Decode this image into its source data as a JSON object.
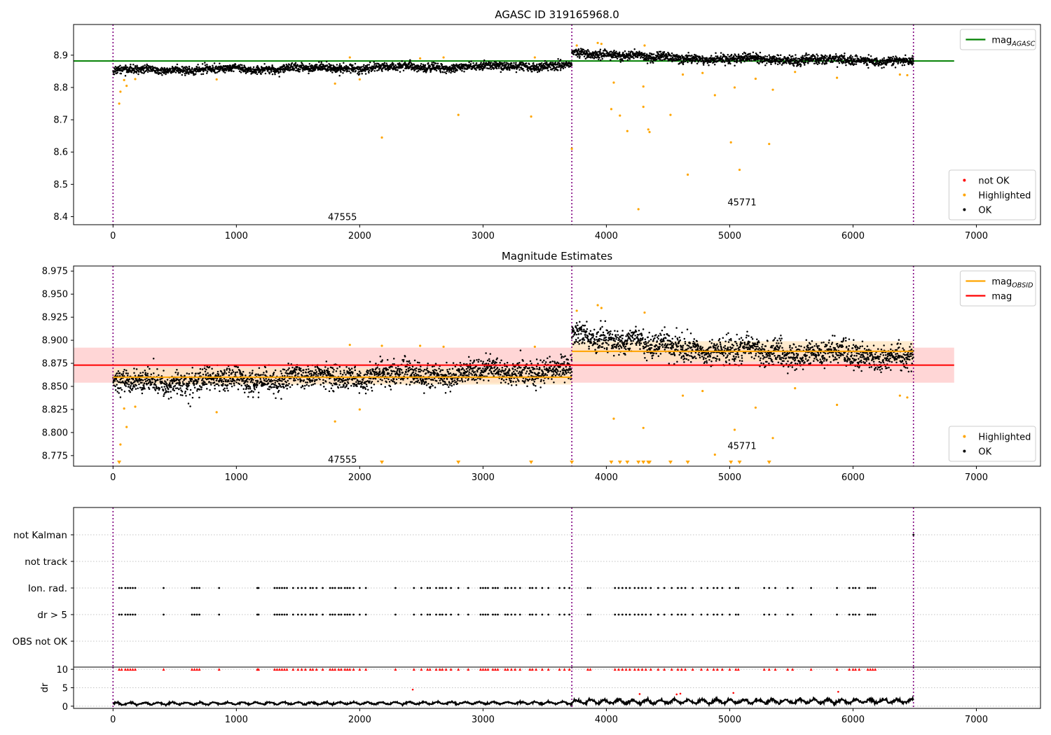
{
  "figure": {
    "title_top": "AGASC ID 319165968.0",
    "title_mid": "Magnitude Estimates",
    "obsid_labels": [
      "47555",
      "45771"
    ]
  },
  "chart_data": [
    {
      "type": "scatter",
      "title": "AGASC ID 319165968.0",
      "xlim": [
        -320,
        7520
      ],
      "ylim": [
        8.375,
        8.995
      ],
      "xticks": [
        0,
        1000,
        2000,
        3000,
        4000,
        5000,
        6000,
        7000
      ],
      "yticks": [
        8.4,
        8.5,
        8.6,
        8.7,
        8.8,
        8.9
      ],
      "grid": false,
      "vlines": [
        0,
        3720,
        6490
      ],
      "annotations": [
        {
          "text": "47555",
          "x": 1860,
          "y": 8.4
        },
        {
          "text": "45771",
          "x": 5100,
          "y": 8.445
        }
      ],
      "hlines": [
        {
          "name": "mag_AGASC",
          "y": 8.882,
          "xmin": -320,
          "xmax": 6820,
          "color": "#008000"
        }
      ],
      "series": [
        {
          "name": "OK",
          "color": "#000000",
          "segments": [
            {
              "x_range": [
                0,
                3720
              ],
              "level_start": 8.853,
              "level_end": 8.868,
              "spread": 0.02
            },
            {
              "x_range": [
                3720,
                4300
              ],
              "level_start": 8.905,
              "level_end": 8.9,
              "spread": 0.02
            },
            {
              "x_range": [
                4300,
                6490
              ],
              "level_start": 8.892,
              "level_end": 8.882,
              "spread": 0.022
            }
          ]
        },
        {
          "name": "Highlighted",
          "color": "#ffa500",
          "points": [
            [
              50,
              8.75
            ],
            [
              60,
              8.787
            ],
            [
              90,
              8.823
            ],
            [
              110,
              8.805
            ],
            [
              180,
              8.826
            ],
            [
              840,
              8.825
            ],
            [
              1800,
              8.812
            ],
            [
              1920,
              8.893
            ],
            [
              2000,
              8.825
            ],
            [
              2180,
              8.645
            ],
            [
              2490,
              8.89
            ],
            [
              2680,
              8.893
            ],
            [
              2800,
              8.715
            ],
            [
              3390,
              8.71
            ],
            [
              3420,
              8.893
            ],
            [
              3720,
              8.61
            ],
            [
              3760,
              8.93
            ],
            [
              3930,
              8.938
            ],
            [
              3960,
              8.935
            ],
            [
              4040,
              8.733
            ],
            [
              4060,
              8.815
            ],
            [
              4110,
              8.713
            ],
            [
              4170,
              8.665
            ],
            [
              4260,
              8.423
            ],
            [
              4300,
              8.803
            ],
            [
              4300,
              8.74
            ],
            [
              4310,
              8.93
            ],
            [
              4340,
              8.67
            ],
            [
              4350,
              8.662
            ],
            [
              4520,
              8.715
            ],
            [
              4620,
              8.84
            ],
            [
              4660,
              8.53
            ],
            [
              4780,
              8.845
            ],
            [
              4880,
              8.776
            ],
            [
              5010,
              8.63
            ],
            [
              5040,
              8.8
            ],
            [
              5080,
              8.545
            ],
            [
              5210,
              8.827
            ],
            [
              5320,
              8.625
            ],
            [
              5350,
              8.793
            ],
            [
              5530,
              8.848
            ],
            [
              5870,
              8.83
            ],
            [
              6380,
              8.84
            ],
            [
              6440,
              8.838
            ]
          ]
        },
        {
          "name": "not OK",
          "color": "#ff0000",
          "points": []
        }
      ],
      "legend": [
        {
          "loc": "upper right",
          "entries": [
            {
              "label": "mag",
              "sub": "AGASC",
              "kind": "line",
              "color": "#008000"
            }
          ]
        },
        {
          "loc": "lower right",
          "entries": [
            {
              "label": "not OK",
              "kind": "dot",
              "color": "#ff0000"
            },
            {
              "label": "Highlighted",
              "kind": "dot",
              "color": "#ffa500"
            },
            {
              "label": "OK",
              "kind": "dot",
              "color": "#000000"
            }
          ]
        }
      ]
    },
    {
      "type": "scatter",
      "title": "Magnitude Estimates",
      "xlim": [
        -320,
        7520
      ],
      "ylim": [
        8.7635,
        8.9805
      ],
      "xticks": [
        0,
        1000,
        2000,
        3000,
        4000,
        5000,
        6000,
        7000
      ],
      "yticks": [
        8.775,
        8.8,
        8.825,
        8.85,
        8.875,
        8.9,
        8.925,
        8.95,
        8.975
      ],
      "ytick_labels": [
        "8.775",
        "8.800",
        "8.825",
        "8.850",
        "8.875",
        "8.900",
        "8.925",
        "8.950",
        "8.975"
      ],
      "grid": false,
      "vlines": [
        0,
        3720,
        6490
      ],
      "annotations": [
        {
          "text": "47555",
          "x": 1860,
          "y": 8.771
        },
        {
          "text": "45771",
          "x": 5100,
          "y": 8.786
        }
      ],
      "bands": [
        {
          "name": "mag",
          "xmin": -320,
          "xmax": 6820,
          "y0": 8.854,
          "y1": 8.892,
          "color": "#ffc8c8"
        },
        {
          "name": "mag_OBSID 47555",
          "xmin": 0,
          "xmax": 3720,
          "y0": 8.852,
          "y1": 8.87,
          "color": "#ffe4bd"
        },
        {
          "name": "mag_OBSID 45771",
          "xmin": 3720,
          "xmax": 6490,
          "y0": 8.877,
          "y1": 8.899,
          "color": "#ffe4bd"
        }
      ],
      "hlines": [
        {
          "name": "mag",
          "y": 8.873,
          "xmin": -320,
          "xmax": 6820,
          "color": "#ff0000"
        },
        {
          "name": "mag_OBSID 47555",
          "y": 8.86,
          "xmin": 0,
          "xmax": 3720,
          "color": "#ffa500"
        },
        {
          "name": "mag_OBSID 45771",
          "y": 8.888,
          "xmin": 3720,
          "xmax": 6490,
          "color": "#ffa500"
        }
      ],
      "series": [
        {
          "name": "OK",
          "color": "#000000",
          "segments": [
            {
              "x_range": [
                0,
                3720
              ],
              "level_start": 8.853,
              "level_end": 8.868,
              "spread": 0.02
            },
            {
              "x_range": [
                3720,
                4300
              ],
              "level_start": 8.905,
              "level_end": 8.9,
              "spread": 0.02
            },
            {
              "x_range": [
                4300,
                6490
              ],
              "level_start": 8.892,
              "level_end": 8.882,
              "spread": 0.022
            }
          ]
        },
        {
          "name": "Highlighted",
          "color": "#ffa500",
          "points": [
            [
              60,
              8.787
            ],
            [
              90,
              8.826
            ],
            [
              110,
              8.806
            ],
            [
              180,
              8.828
            ],
            [
              840,
              8.822
            ],
            [
              1800,
              8.812
            ],
            [
              1920,
              8.895
            ],
            [
              2000,
              8.825
            ],
            [
              2180,
              8.894
            ],
            [
              2490,
              8.894
            ],
            [
              2680,
              8.893
            ],
            [
              3420,
              8.893
            ],
            [
              3760,
              8.932
            ],
            [
              3930,
              8.938
            ],
            [
              3960,
              8.935
            ],
            [
              4060,
              8.815
            ],
            [
              4300,
              8.805
            ],
            [
              4310,
              8.93
            ],
            [
              4620,
              8.84
            ],
            [
              4780,
              8.845
            ],
            [
              4880,
              8.776
            ],
            [
              5040,
              8.803
            ],
            [
              5210,
              8.827
            ],
            [
              5350,
              8.794
            ],
            [
              5530,
              8.848
            ],
            [
              5870,
              8.83
            ],
            [
              6380,
              8.84
            ],
            [
              6440,
              8.838
            ]
          ]
        },
        {
          "name": "Highlighted (below axis)",
          "color": "#ffa500",
          "marker": "triangle-down",
          "x": [
            50,
            2180,
            2800,
            3390,
            3720,
            4040,
            4110,
            4170,
            4260,
            4300,
            4340,
            4350,
            4520,
            4660,
            5010,
            5080,
            5320
          ]
        }
      ],
      "legend": [
        {
          "loc": "upper right",
          "entries": [
            {
              "label": "mag",
              "sub": "OBSID",
              "kind": "line",
              "color": "#ffa500"
            },
            {
              "label": "mag",
              "sub": "",
              "kind": "line",
              "color": "#ff0000"
            }
          ]
        },
        {
          "loc": "lower right",
          "entries": [
            {
              "label": "Highlighted",
              "kind": "dot",
              "color": "#ffa500"
            },
            {
              "label": "OK",
              "kind": "dot",
              "color": "#000000"
            }
          ]
        }
      ]
    },
    {
      "type": "scatter",
      "title": "",
      "xlim": [
        -320,
        7520
      ],
      "categories": [
        "not Kalman",
        "not track",
        "Ion. rad.",
        "dr > 5",
        "OBS not OK"
      ],
      "grid": true,
      "vlines": [
        0,
        3720,
        6490
      ],
      "flag_x": [
        50,
        70,
        100,
        120,
        140,
        160,
        180,
        410,
        640,
        660,
        680,
        700,
        860,
        1170,
        1180,
        1310,
        1330,
        1350,
        1370,
        1390,
        1410,
        1460,
        1500,
        1530,
        1560,
        1600,
        1620,
        1650,
        1700,
        1760,
        1780,
        1800,
        1830,
        1850,
        1880,
        1900,
        1920,
        1950,
        2000,
        2050,
        2290,
        2440,
        2500,
        2550,
        2570,
        2620,
        2650,
        2670,
        2700,
        2740,
        2800,
        2880,
        2980,
        3000,
        3020,
        3040,
        3080,
        3100,
        3120,
        3180,
        3200,
        3230,
        3260,
        3300,
        3380,
        3400,
        3430,
        3480,
        3530,
        3620,
        3660,
        3700,
        3850,
        3870,
        4070,
        4100,
        4130,
        4160,
        4190,
        4230,
        4260,
        4290,
        4320,
        4360,
        4420,
        4470,
        4530,
        4580,
        4610,
        4640,
        4700,
        4770,
        4820,
        4870,
        4900,
        4940,
        5000,
        5050,
        5070,
        5280,
        5320,
        5370,
        5470,
        5510,
        5660,
        5870,
        5970,
        6000,
        6020,
        6050,
        6120,
        6140,
        6160,
        6180
      ],
      "not_kalman_x": [
        6490
      ]
    },
    {
      "type": "line",
      "title": "",
      "ylabel": "dr",
      "xlim": [
        -320,
        7520
      ],
      "ylim": [
        -0.6,
        10.6
      ],
      "yticks": [
        0,
        5,
        10
      ],
      "grid": true,
      "vlines": [
        0,
        3720,
        6490
      ],
      "series": [
        {
          "name": "dr",
          "color": "#000000",
          "segments": [
            {
              "x_range": [
                0,
                3720
              ],
              "level_start": 0.7,
              "level_end": 0.9,
              "spread": 0.6
            },
            {
              "x_range": [
                3720,
                6490
              ],
              "level_start": 1.2,
              "level_end": 1.4,
              "spread": 1.1
            }
          ]
        },
        {
          "name": "dr > 10",
          "color": "#ff0000",
          "marker": "triangle-up",
          "y": 10
        },
        {
          "name": "dr outliers",
          "color": "#ff0000",
          "points": [
            [
              2430,
              4.5
            ],
            [
              4270,
              3.3
            ],
            [
              4570,
              3.2
            ],
            [
              4600,
              3.4
            ],
            [
              5030,
              3.6
            ],
            [
              5880,
              3.9
            ]
          ]
        }
      ]
    }
  ]
}
